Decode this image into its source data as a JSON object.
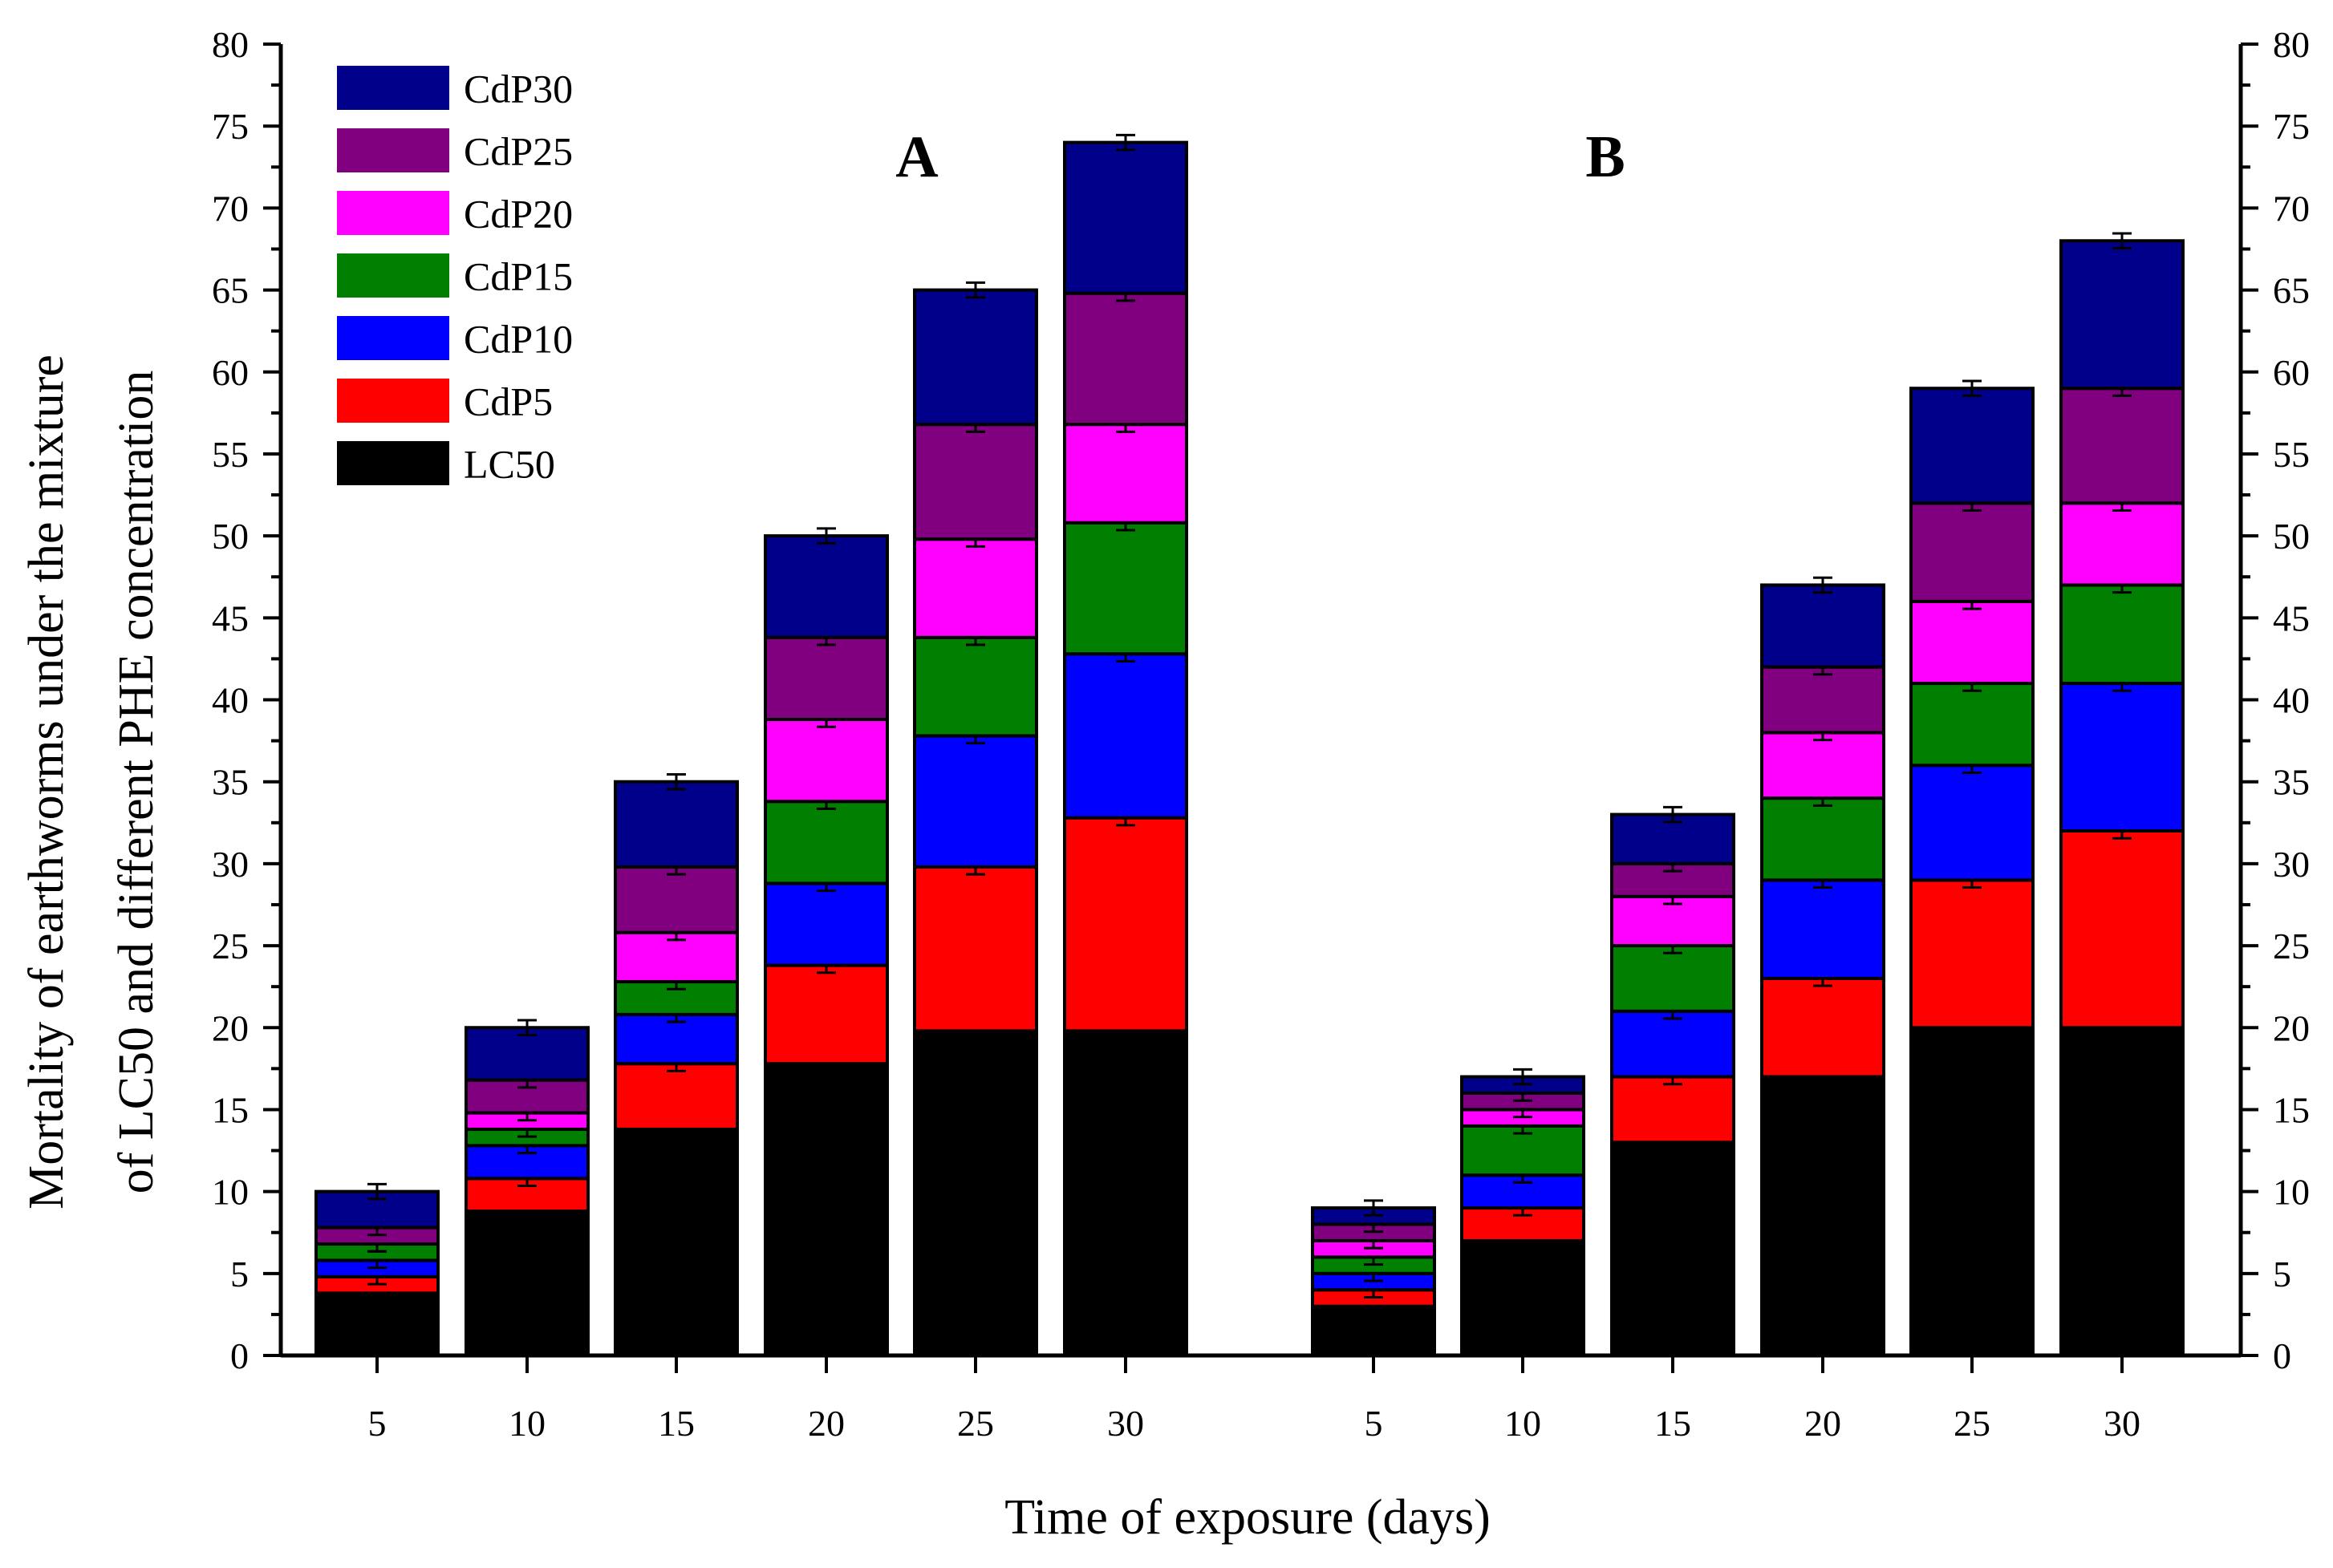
{
  "chart_data": {
    "type": "bar",
    "stacked": true,
    "xlabel": "Time of exposure (days)",
    "ylabel_line1": "Mortality of earthworms under the mixture",
    "ylabel_line2": "of LC50 and different PHE concentration",
    "ylim": [
      0,
      80
    ],
    "yticks": [
      0,
      5,
      10,
      15,
      20,
      25,
      30,
      35,
      40,
      45,
      50,
      55,
      60,
      65,
      70,
      75,
      80
    ],
    "categories": [
      "5",
      "10",
      "15",
      "20",
      "25",
      "30"
    ],
    "legend": [
      "CdP30",
      "CdP25",
      "CdP20",
      "CdP15",
      "CdP10",
      "CdP5",
      "LC50"
    ],
    "colors": {
      "LC50": "#000000",
      "CdP5": "#ff0000",
      "CdP10": "#0000ff",
      "CdP15": "#007f00",
      "CdP20": "#ff00ff",
      "CdP25": "#800080",
      "CdP30": "#00008b"
    },
    "panels": [
      {
        "label": "A",
        "series": [
          {
            "name": "LC50",
            "values": [
              3.8,
              8.8,
              13.8,
              17.8,
              19.8,
              19.8
            ]
          },
          {
            "name": "CdP5",
            "values": [
              1.0,
              2.0,
              4.0,
              6.0,
              10.0,
              13.0
            ]
          },
          {
            "name": "CdP10",
            "values": [
              1.0,
              2.0,
              3.0,
              5.0,
              8.0,
              10.0
            ]
          },
          {
            "name": "CdP15",
            "values": [
              1.0,
              1.0,
              2.0,
              5.0,
              6.0,
              8.0
            ]
          },
          {
            "name": "CdP20",
            "values": [
              0.0,
              1.0,
              3.0,
              5.0,
              6.0,
              6.0
            ]
          },
          {
            "name": "CdP25",
            "values": [
              1.0,
              2.0,
              4.0,
              5.0,
              7.0,
              8.0
            ]
          },
          {
            "name": "CdP30",
            "values": [
              2.2,
              3.2,
              5.2,
              6.2,
              8.2,
              9.2
            ]
          }
        ]
      },
      {
        "label": "B",
        "series": [
          {
            "name": "LC50",
            "values": [
              3.0,
              7.0,
              13.0,
              17.0,
              20.0,
              20.0
            ]
          },
          {
            "name": "CdP5",
            "values": [
              1.0,
              2.0,
              4.0,
              6.0,
              9.0,
              12.0
            ]
          },
          {
            "name": "CdP10",
            "values": [
              1.0,
              2.0,
              4.0,
              6.0,
              7.0,
              9.0
            ]
          },
          {
            "name": "CdP15",
            "values": [
              1.0,
              3.0,
              4.0,
              5.0,
              5.0,
              6.0
            ]
          },
          {
            "name": "CdP20",
            "values": [
              1.0,
              1.0,
              3.0,
              4.0,
              5.0,
              5.0
            ]
          },
          {
            "name": "CdP25",
            "values": [
              1.0,
              1.0,
              2.0,
              4.0,
              6.0,
              7.0
            ]
          },
          {
            "name": "CdP30",
            "values": [
              1.0,
              1.0,
              3.0,
              5.0,
              7.0,
              9.0
            ]
          }
        ]
      }
    ]
  }
}
